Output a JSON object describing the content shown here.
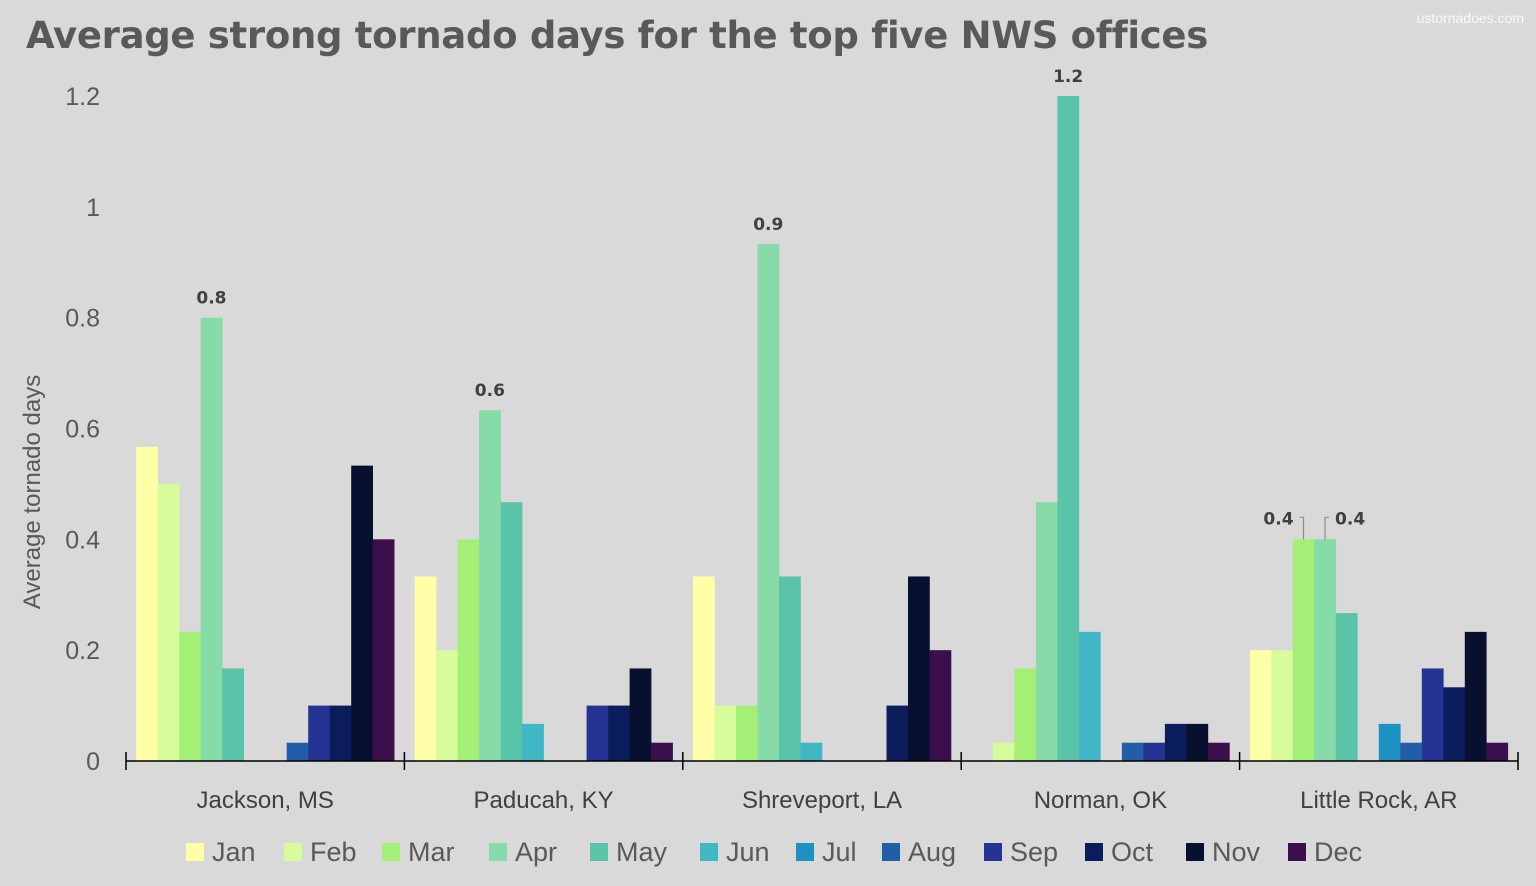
{
  "watermark": "ustornadoes.com",
  "chart_data": {
    "type": "bar",
    "title": "Average strong tornado days for the top five NWS offices",
    "ylabel": "Average tornado days",
    "xlabel": "",
    "ylim": [
      0,
      1.2
    ],
    "yticks": [
      "0",
      "0.2",
      "0.4",
      "0.6",
      "0.8",
      "1",
      "1.2"
    ],
    "categories": [
      "Jackson, MS",
      "Paducah, KY",
      "Shreveport, LA",
      "Norman, OK",
      "Little Rock, AR"
    ],
    "legend_position": "bottom",
    "grid": false,
    "series": [
      {
        "name": "Jan",
        "color": "#ffffa8",
        "values": [
          0.567,
          0.333,
          0.333,
          0,
          0.2
        ]
      },
      {
        "name": "Feb",
        "color": "#d6fc9c",
        "values": [
          0.5,
          0.2,
          0.1,
          0.033,
          0.2
        ]
      },
      {
        "name": "Mar",
        "color": "#a4ef76",
        "values": [
          0.233,
          0.4,
          0.1,
          0.167,
          0.4
        ]
      },
      {
        "name": "Apr",
        "color": "#86dba8",
        "values": [
          0.8,
          0.633,
          0.933,
          0.467,
          0.4
        ]
      },
      {
        "name": "May",
        "color": "#5ac4a8",
        "values": [
          0.167,
          0.467,
          0.333,
          1.2,
          0.267
        ]
      },
      {
        "name": "Jun",
        "color": "#41b6c4",
        "values": [
          0,
          0.067,
          0.033,
          0.233,
          0
        ]
      },
      {
        "name": "Jul",
        "color": "#1d91c0",
        "values": [
          0,
          0,
          0,
          0,
          0.067
        ]
      },
      {
        "name": "Aug",
        "color": "#225ea8",
        "values": [
          0.033,
          0,
          0,
          0.033,
          0.033
        ]
      },
      {
        "name": "Sep",
        "color": "#253494",
        "values": [
          0.1,
          0.1,
          0,
          0.033,
          0.167
        ]
      },
      {
        "name": "Oct",
        "color": "#0c1d5e",
        "values": [
          0.1,
          0.1,
          0.1,
          0.067,
          0.133
        ]
      },
      {
        "name": "Nov",
        "color": "#081030",
        "values": [
          0.533,
          0.167,
          0.333,
          0.067,
          0.233
        ]
      },
      {
        "name": "Dec",
        "color": "#3b0f4b",
        "values": [
          0.4,
          0.033,
          0.2,
          0.033,
          0.033
        ]
      }
    ],
    "annotations": [
      {
        "category": 0,
        "series": 3,
        "text": "0.8"
      },
      {
        "category": 1,
        "series": 3,
        "text": "0.6"
      },
      {
        "category": 2,
        "series": 3,
        "text": "0.9"
      },
      {
        "category": 3,
        "series": 4,
        "text": "1.2"
      },
      {
        "category": 4,
        "series": 2,
        "text": "0.4"
      },
      {
        "category": 4,
        "series": 3,
        "text": "0.4"
      }
    ]
  }
}
